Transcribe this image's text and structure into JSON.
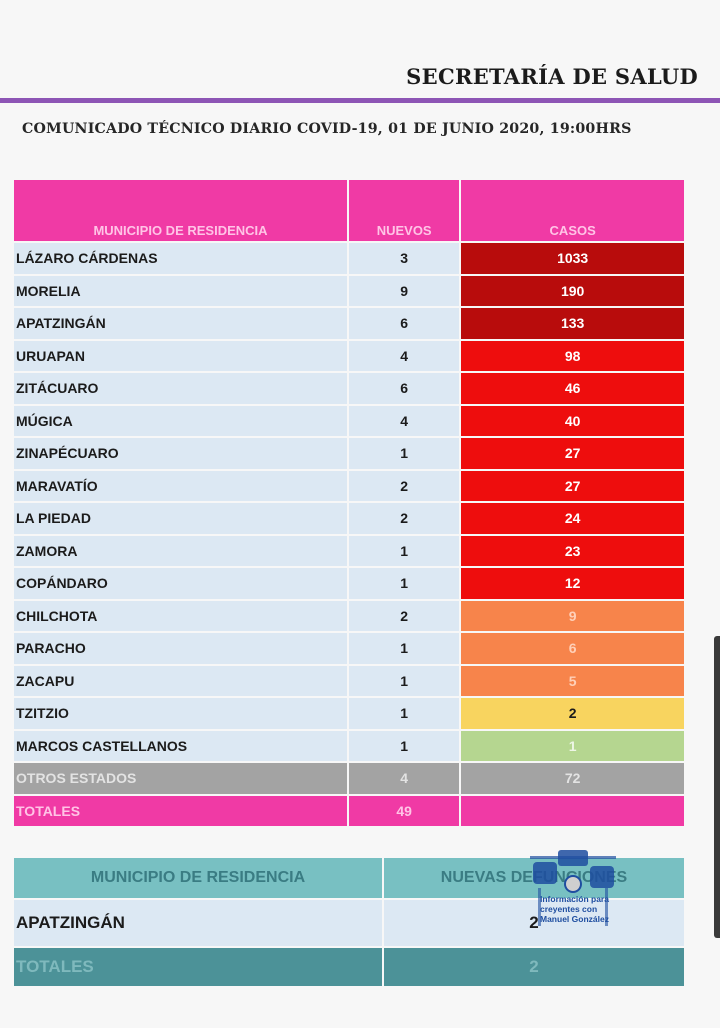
{
  "header": {
    "title": "SECRETARÍA DE SALUD",
    "subtitle": "COMUNICADO TÉCNICO DIARIO COVID-19, 01 DE JUNIO 2020, 19:00HRS"
  },
  "main_table": {
    "headers": [
      "MUNICIPIO DE RESIDENCIA",
      "NUEVOS",
      "CASOS"
    ],
    "rows": [
      {
        "municipio": "LÁZARO CÁRDENAS",
        "nuevos": "3",
        "casos": "1033"
      },
      {
        "municipio": "MORELIA",
        "nuevos": "9",
        "casos": "190"
      },
      {
        "municipio": "APATZINGÁN",
        "nuevos": "6",
        "casos": "133"
      },
      {
        "municipio": "URUAPAN",
        "nuevos": "4",
        "casos": "98"
      },
      {
        "municipio": "ZITÁCUARO",
        "nuevos": "6",
        "casos": "46"
      },
      {
        "municipio": "MÚGICA",
        "nuevos": "4",
        "casos": "40"
      },
      {
        "municipio": "ZINAPÉCUARO",
        "nuevos": "1",
        "casos": "27"
      },
      {
        "municipio": "MARAVATÍO",
        "nuevos": "2",
        "casos": "27"
      },
      {
        "municipio": "LA PIEDAD",
        "nuevos": "2",
        "casos": "24"
      },
      {
        "municipio": "ZAMORA",
        "nuevos": "1",
        "casos": "23"
      },
      {
        "municipio": "COPÁNDARO",
        "nuevos": "1",
        "casos": "12"
      },
      {
        "municipio": "CHILCHOTA",
        "nuevos": "2",
        "casos": "9"
      },
      {
        "municipio": "PARACHO",
        "nuevos": "1",
        "casos": "6"
      },
      {
        "municipio": "ZACAPU",
        "nuevos": "1",
        "casos": "5"
      },
      {
        "municipio": "TZITZIO",
        "nuevos": "1",
        "casos": "2"
      },
      {
        "municipio": "MARCOS CASTELLANOS",
        "nuevos": "1",
        "casos": "1"
      }
    ],
    "otros": {
      "label": "OTROS ESTADOS",
      "nuevos": "4",
      "casos": "72"
    },
    "totales": {
      "label": "TOTALES",
      "nuevos": "49",
      "casos": ""
    }
  },
  "second_table": {
    "headers": [
      "MUNICIPIO DE RESIDENCIA",
      "NUEVAS DEFUNCIONES"
    ],
    "rows": [
      {
        "municipio": "APATZINGÁN",
        "valor": "2"
      }
    ],
    "totales": {
      "label": "TOTALES",
      "valor": "2"
    }
  },
  "watermark": {
    "text": "Información para creyentes con Manuel González"
  },
  "colors": {
    "header_pink": "#f03aa5",
    "dark_red": "#b80c0c",
    "red": "#ee0d0d",
    "orange": "#f7844b",
    "yellow": "#f8d45f",
    "green": "#b5d690",
    "teal": "#78c0c2",
    "purple_rule": "#8d55b5"
  }
}
